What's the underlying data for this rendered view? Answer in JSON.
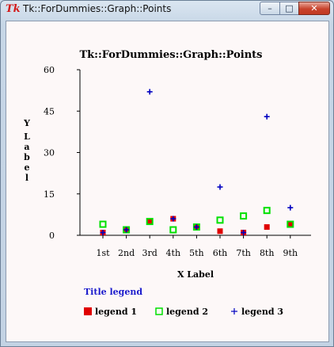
{
  "window": {
    "title": "Tk::ForDummies::Graph::Points",
    "icon_text": "Tk",
    "buttons": {
      "minimize": "–",
      "maximize": "□",
      "close": "✕"
    }
  },
  "colors": {
    "series_1": "#e00000",
    "series_2": "#00e000",
    "series_3": "#0000c0",
    "legend_title": "#1a1acc"
  },
  "chart_data": {
    "type": "scatter",
    "title": "Tk::ForDummies::Graph::Points",
    "xlabel": "X Label",
    "ylabel": "Y Label",
    "categories": [
      "1st",
      "2nd",
      "3rd",
      "4th",
      "5th",
      "6th",
      "7th",
      "8th",
      "9th"
    ],
    "y_ticks": [
      0,
      15,
      30,
      45,
      60
    ],
    "ylim": [
      0,
      60
    ],
    "legend_title": "Title legend",
    "legend_position": "bottom",
    "grid": false,
    "series": [
      {
        "name": "legend 1",
        "marker": "filled-square",
        "color": "#e00000",
        "values": [
          1,
          2,
          5,
          6,
          3,
          1.5,
          1,
          3,
          4
        ]
      },
      {
        "name": "legend 2",
        "marker": "open-square",
        "color": "#00e000",
        "values": [
          4,
          2,
          5,
          2,
          3,
          5.5,
          7,
          9,
          4
        ]
      },
      {
        "name": "legend 3",
        "marker": "plus",
        "color": "#0000c0",
        "values": [
          1,
          2,
          52,
          6,
          3,
          17.5,
          1,
          43,
          10
        ]
      }
    ]
  }
}
